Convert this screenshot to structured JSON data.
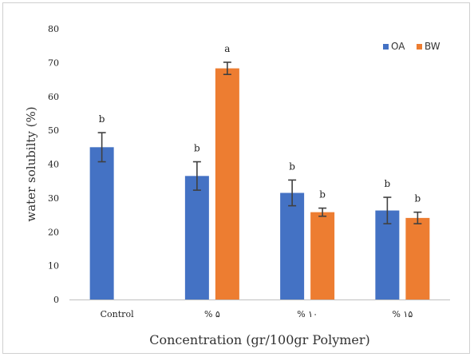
{
  "chart_data": {
    "type": "bar",
    "xlabel": "Concentration (gr/100gr Polymer)",
    "ylabel": "water solubilty (%)",
    "ylim": [
      0,
      80
    ],
    "yticks": [
      "0",
      "10",
      "20",
      "30",
      "40",
      "50",
      "60",
      "70",
      "80"
    ],
    "categories": [
      "Control",
      "% ۵",
      "% ۱۰",
      "% ۱۵"
    ],
    "legend_position": "top-right",
    "grid": false,
    "series": [
      {
        "name": "OA",
        "color": "#4472c4",
        "values": [
          45,
          36.5,
          31.5,
          26.3
        ],
        "errors": [
          4.3,
          4.2,
          3.8,
          3.9
        ],
        "labels": [
          "b",
          "b",
          "b",
          "b"
        ]
      },
      {
        "name": "BW",
        "color": "#ed7d31",
        "values": [
          null,
          68.3,
          25.8,
          24.1
        ],
        "errors": [
          null,
          1.8,
          1.2,
          1.7
        ],
        "labels": [
          null,
          "a",
          "b",
          "b"
        ]
      }
    ]
  }
}
